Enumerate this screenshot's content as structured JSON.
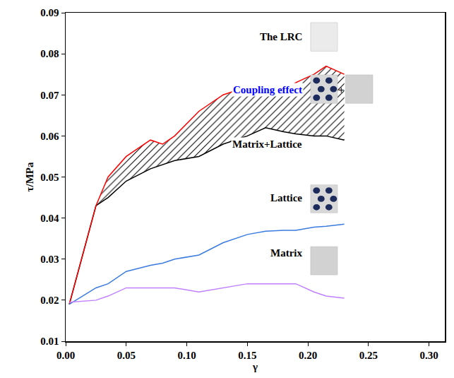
{
  "chart_data": {
    "type": "line",
    "x_label": "γ",
    "y_label": "τ/MPa",
    "x": [
      0.003,
      0.025,
      0.035,
      0.05,
      0.07,
      0.08,
      0.09,
      0.11,
      0.13,
      0.15,
      0.165,
      0.18,
      0.19,
      0.205,
      0.215,
      0.23
    ],
    "series": [
      {
        "name": "The LRC",
        "color": "#ff0000",
        "values": [
          0.019,
          0.043,
          0.05,
          0.055,
          0.059,
          0.058,
          0.06,
          0.066,
          0.07,
          0.072,
          0.072,
          0.071,
          0.073,
          0.075,
          0.077,
          0.075
        ]
      },
      {
        "name": "Matrix+Lattice",
        "color": "#000000",
        "values": [
          0.019,
          0.043,
          0.045,
          0.049,
          0.052,
          0.053,
          0.054,
          0.055,
          0.058,
          0.06,
          0.062,
          0.061,
          0.0605,
          0.06,
          0.06,
          0.059
        ]
      },
      {
        "name": "Lattice",
        "color": "#3a7be0",
        "values": [
          0.019,
          0.023,
          0.024,
          0.027,
          0.0285,
          0.029,
          0.03,
          0.031,
          0.034,
          0.036,
          0.0368,
          0.037,
          0.037,
          0.0378,
          0.038,
          0.0385
        ]
      },
      {
        "name": "Matrix",
        "color": "#c080ff",
        "values": [
          0.0195,
          0.02,
          0.021,
          0.023,
          0.023,
          0.023,
          0.023,
          0.022,
          0.023,
          0.024,
          0.024,
          0.024,
          0.024,
          0.022,
          0.021,
          0.0205
        ]
      }
    ],
    "annotations": [
      "Coupling effect",
      "+"
    ],
    "xlim": [
      0,
      0.313
    ],
    "xticks": [
      {
        "value": 0,
        "label": "0.00"
      },
      0.05,
      {
        "value": 0.1,
        "label": "0.10"
      },
      0.15,
      {
        "value": 0.2,
        "label": "0.20"
      },
      0.25,
      {
        "value": 0.3,
        "label": "0.30"
      }
    ],
    "ylim": [
      0.01,
      0.09
    ],
    "yticks": [
      0.01,
      0.02,
      0.03,
      0.04,
      0.05,
      0.06,
      0.07,
      0.08,
      0.09
    ],
    "grid": false
  }
}
